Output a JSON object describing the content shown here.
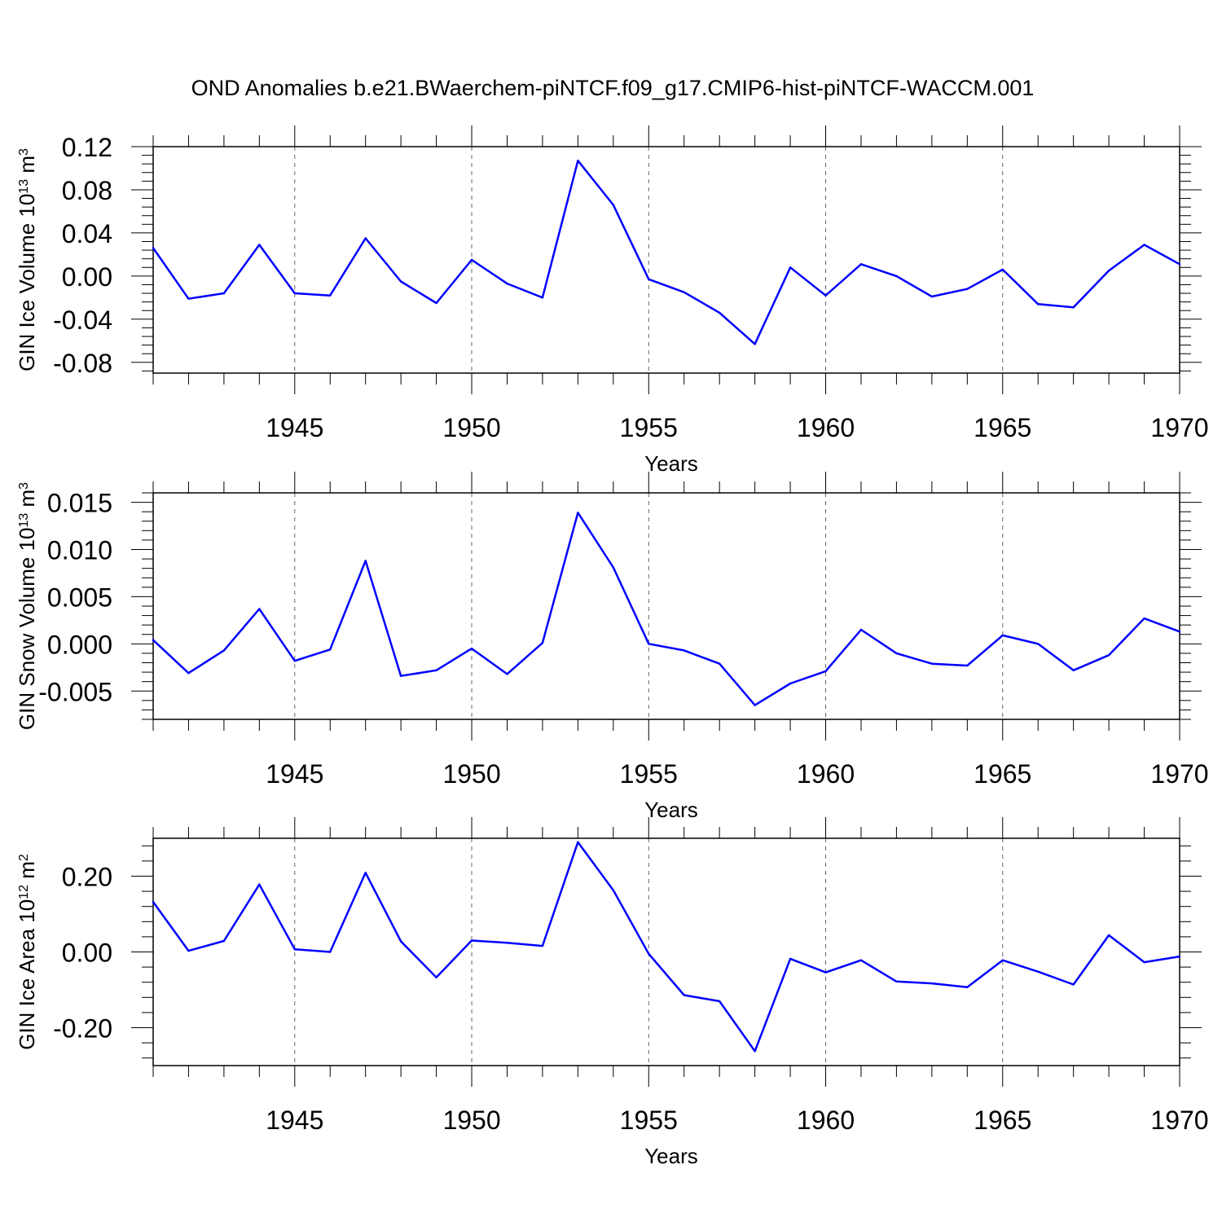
{
  "title": "OND Anomalies b.e21.BWaerchem-piNTCF.f09_g17.CMIP6-hist-piNTCF-WACCM.001",
  "line_color": "#0000ff",
  "chart_data": [
    {
      "type": "line",
      "ylabel": "GIN Ice Volume 10",
      "ylabel_exp": "13",
      "ylabel_unit": " m",
      "ylabel_unit_exp": "3",
      "xlabel": "Years",
      "xlim": [
        1941,
        1970
      ],
      "ylim": [
        -0.09,
        0.12
      ],
      "yticks": [
        0.12,
        0.08,
        0.04,
        0.0,
        -0.04,
        -0.08
      ],
      "ytick_labels": [
        "0.12",
        "0.08",
        "0.04",
        "0.00",
        "-0.04",
        "-0.08"
      ],
      "xticks": [
        1945,
        1950,
        1955,
        1960,
        1965,
        1970
      ],
      "xtick_labels": [
        "1945",
        "1950",
        "1955",
        "1960",
        "1965",
        "1970"
      ],
      "x": [
        1941,
        1942,
        1943,
        1944,
        1945,
        1946,
        1947,
        1948,
        1949,
        1950,
        1951,
        1952,
        1953,
        1954,
        1955,
        1956,
        1957,
        1958,
        1959,
        1960,
        1961,
        1962,
        1963,
        1964,
        1965,
        1966,
        1967,
        1968,
        1969,
        1970
      ],
      "y": [
        0.026,
        -0.021,
        -0.016,
        0.029,
        -0.016,
        -0.018,
        0.035,
        -0.005,
        -0.025,
        0.015,
        -0.007,
        -0.02,
        0.107,
        0.066,
        -0.003,
        -0.015,
        -0.034,
        -0.063,
        0.008,
        -0.018,
        0.011,
        0.0,
        -0.019,
        -0.012,
        0.006,
        -0.026,
        -0.029,
        0.005,
        0.029,
        0.011
      ]
    },
    {
      "type": "line",
      "ylabel": "GIN Snow Volume 10",
      "ylabel_exp": "13",
      "ylabel_unit": " m",
      "ylabel_unit_exp": "3",
      "xlabel": "Years",
      "xlim": [
        1941,
        1970
      ],
      "ylim": [
        -0.008,
        0.016
      ],
      "yticks": [
        0.015,
        0.01,
        0.005,
        0.0,
        -0.005
      ],
      "ytick_labels": [
        "0.015",
        "0.010",
        "0.005",
        "0.000",
        "-0.005"
      ],
      "xticks": [
        1945,
        1950,
        1955,
        1960,
        1965,
        1970
      ],
      "xtick_labels": [
        "1945",
        "1950",
        "1955",
        "1960",
        "1965",
        "1970"
      ],
      "x": [
        1941,
        1942,
        1943,
        1944,
        1945,
        1946,
        1947,
        1948,
        1949,
        1950,
        1951,
        1952,
        1953,
        1954,
        1955,
        1956,
        1957,
        1958,
        1959,
        1960,
        1961,
        1962,
        1963,
        1964,
        1965,
        1966,
        1967,
        1968,
        1969,
        1970
      ],
      "y": [
        0.0004,
        -0.0031,
        -0.0007,
        0.0037,
        -0.0018,
        -0.0006,
        0.0088,
        -0.0034,
        -0.0028,
        -0.0005,
        -0.0032,
        0.0001,
        0.0139,
        0.0081,
        0.0,
        -0.0007,
        -0.0021,
        -0.0065,
        -0.0042,
        -0.0029,
        0.0015,
        -0.001,
        -0.0021,
        -0.0023,
        0.0009,
        0.0,
        -0.0028,
        -0.0012,
        0.0027,
        0.0013
      ]
    },
    {
      "type": "line",
      "ylabel": "GIN Ice Area 10",
      "ylabel_exp": "12",
      "ylabel_unit": " m",
      "ylabel_unit_exp": "2",
      "xlabel": "Years",
      "xlim": [
        1941,
        1970
      ],
      "ylim": [
        -0.3,
        0.3
      ],
      "yticks": [
        0.2,
        0.0,
        -0.2
      ],
      "ytick_labels": [
        "0.20",
        "0.00",
        "-0.20"
      ],
      "xticks": [
        1945,
        1950,
        1955,
        1960,
        1965,
        1970
      ],
      "xtick_labels": [
        "1945",
        "1950",
        "1955",
        "1960",
        "1965",
        "1970"
      ],
      "x": [
        1941,
        1942,
        1943,
        1944,
        1945,
        1946,
        1947,
        1948,
        1949,
        1950,
        1951,
        1952,
        1953,
        1954,
        1955,
        1956,
        1957,
        1958,
        1959,
        1960,
        1961,
        1962,
        1963,
        1964,
        1965,
        1966,
        1967,
        1968,
        1969,
        1970
      ],
      "y": [
        0.132,
        0.003,
        0.029,
        0.178,
        0.007,
        0.0,
        0.209,
        0.028,
        -0.067,
        0.03,
        0.024,
        0.016,
        0.29,
        0.163,
        -0.005,
        -0.114,
        -0.13,
        -0.262,
        -0.018,
        -0.054,
        -0.022,
        -0.078,
        -0.083,
        -0.093,
        -0.022,
        -0.052,
        -0.086,
        0.044,
        -0.027,
        -0.012
      ]
    }
  ]
}
